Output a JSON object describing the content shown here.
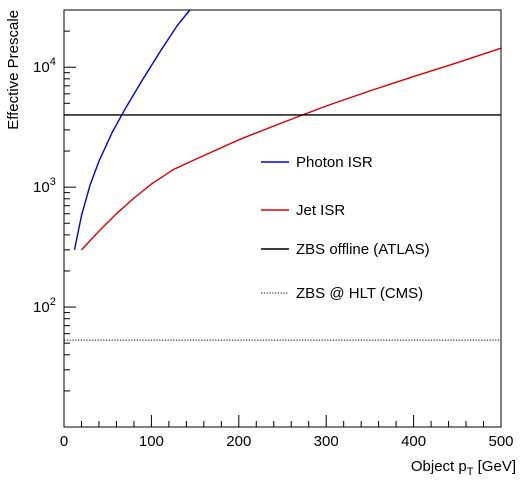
{
  "chart_data": {
    "type": "line",
    "title": "",
    "xlabel_main": "Object p",
    "xlabel_sub": "T",
    "xlabel_unit": " [GeV]",
    "ylabel": "Effective Prescale",
    "xlim": [
      0,
      500
    ],
    "ylim": [
      10,
      30000
    ],
    "yscale": "log",
    "grid": false,
    "legend_position": "center-right",
    "x_tick_labels": [
      "0",
      "100",
      "200",
      "300",
      "400",
      "500"
    ],
    "x_tick_values": [
      0,
      100,
      200,
      300,
      400,
      500
    ],
    "y_tick_labels": [
      {
        "base": "10",
        "exp": "2",
        "value": 100
      },
      {
        "base": "10",
        "exp": "3",
        "value": 1000
      },
      {
        "base": "10",
        "exp": "4",
        "value": 10000
      }
    ],
    "series": [
      {
        "name": "Photon ISR",
        "color": "#0000dd",
        "style": "solid",
        "x": [
          12,
          20,
          30,
          40,
          55,
          70,
          90,
          110,
          130,
          144
        ],
        "y": [
          300,
          580,
          1050,
          1650,
          2850,
          4500,
          7900,
          13500,
          22500,
          30000
        ]
      },
      {
        "name": "Jet ISR",
        "color": "#dd0000",
        "style": "solid",
        "x": [
          20,
          40,
          60,
          80,
          100,
          125,
          150,
          200,
          250,
          300,
          350,
          400,
          450,
          500
        ],
        "y": [
          300,
          430,
          600,
          810,
          1060,
          1400,
          1700,
          2480,
          3450,
          4750,
          6350,
          8350,
          10900,
          14400
        ]
      },
      {
        "name": "ZBS offline (ATLAS)",
        "color": "#000000",
        "style": "solid",
        "x": [
          0,
          500
        ],
        "y": [
          4000,
          4000
        ]
      },
      {
        "name": "ZBS @ HLT (CMS)",
        "color": "#000000",
        "style": "dotted",
        "x": [
          0,
          500
        ],
        "y": [
          53,
          53
        ]
      }
    ]
  }
}
